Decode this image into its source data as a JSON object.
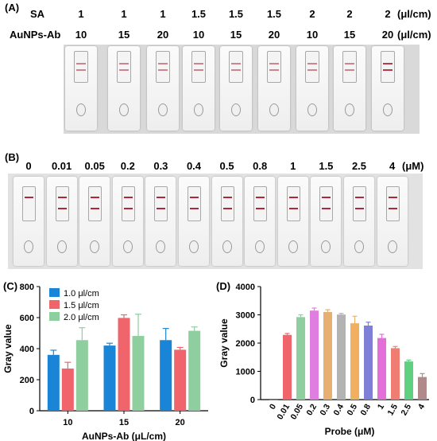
{
  "panels": {
    "a": {
      "label": "(A)",
      "row1_name": "SA",
      "row2_name": "AuNPs-Ab",
      "unit": "(μl/cm)",
      "sa_values": [
        "1",
        "1",
        "1",
        "1.5",
        "1.5",
        "1.5",
        "2",
        "2",
        "2"
      ],
      "ab_values": [
        "10",
        "15",
        "20",
        "10",
        "15",
        "20",
        "10",
        "15",
        "20"
      ]
    },
    "b": {
      "label": "(B)",
      "unit": "(μM)",
      "concentrations": [
        "0",
        "0.01",
        "0.05",
        "0.2",
        "0.3",
        "0.4",
        "0.5",
        "0.8",
        "1",
        "1.5",
        "2.5",
        "4"
      ]
    },
    "c": {
      "label": "(C)"
    },
    "d": {
      "label": "(D)"
    }
  },
  "colors": {
    "blue": "#1a85d6",
    "red": "#f0646b",
    "green": "#8fcf9f",
    "test_line": "#b0263a"
  },
  "chart_data": [
    {
      "type": "bar",
      "xlabel": "AuNPs-Ab (μL/cm)",
      "ylabel": "Gray value",
      "ylim": [
        0,
        800
      ],
      "yticks": [
        0,
        200,
        400,
        600,
        800
      ],
      "categories": [
        "10",
        "15",
        "20"
      ],
      "legend_position": "top-left",
      "series": [
        {
          "name": "1.0 μl/cm",
          "color": "#1a85d6",
          "values": [
            360,
            420,
            455
          ],
          "errors": [
            30,
            15,
            75
          ]
        },
        {
          "name": "1.5 μl/cm",
          "color": "#f0646b",
          "values": [
            272,
            598,
            393
          ],
          "errors": [
            40,
            20,
            15
          ]
        },
        {
          "name": "2.0 μl/cm",
          "color": "#8fcf9f",
          "values": [
            455,
            482,
            515
          ],
          "errors": [
            80,
            140,
            25
          ]
        }
      ]
    },
    {
      "type": "bar",
      "xlabel": "Probe (μM)",
      "ylabel": "Gray value",
      "ylim": [
        0,
        4000
      ],
      "yticks": [
        0,
        1000,
        2000,
        3000,
        4000
      ],
      "categories": [
        "0",
        "0.01",
        "0.05",
        "0.2",
        "0.3",
        "0.4",
        "0.5",
        "0.8",
        "1",
        "1.5",
        "2.5",
        "4"
      ],
      "values": [
        0,
        2290,
        2920,
        3150,
        3100,
        3010,
        2700,
        2620,
        2180,
        1820,
        1350,
        800
      ],
      "errors": [
        0,
        50,
        80,
        90,
        80,
        40,
        250,
        120,
        130,
        60,
        50,
        120
      ],
      "colors": [
        "#555555",
        "#f0646b",
        "#8fcf9f",
        "#e07de0",
        "#e8b070",
        "#b3b3b3",
        "#f0b060",
        "#7f7fd8",
        "#e36fd8",
        "#f07d72",
        "#5fd07f",
        "#b08a8a"
      ]
    }
  ]
}
